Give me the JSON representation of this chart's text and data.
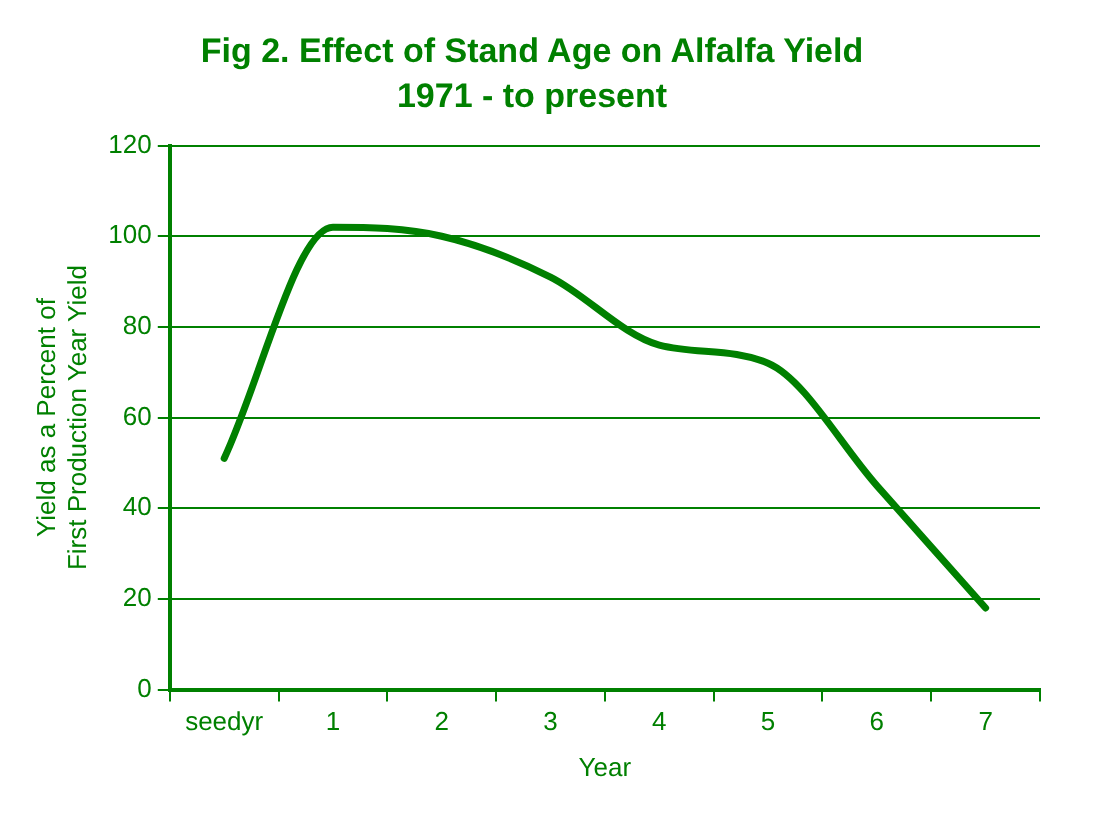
{
  "chart_data": {
    "type": "line",
    "title": "Fig 2. Effect of Stand Age on Alfalfa Yield",
    "subtitle": "1971 - to present",
    "xlabel": "Year",
    "ylabel": "Yield as a Percent of First Production Year Yield",
    "categories": [
      "seedyr",
      "1",
      "2",
      "3",
      "4",
      "5",
      "6",
      "7"
    ],
    "series": [
      {
        "color": "#008000",
        "values": [
          51,
          102,
          100,
          91,
          76,
          72,
          45,
          18
        ]
      }
    ],
    "ylim": [
      0,
      120
    ],
    "yticks": [
      0,
      20,
      40,
      60,
      80,
      100,
      120
    ],
    "grid": "y",
    "legend": false,
    "marker": "none",
    "line_style": "solid"
  }
}
